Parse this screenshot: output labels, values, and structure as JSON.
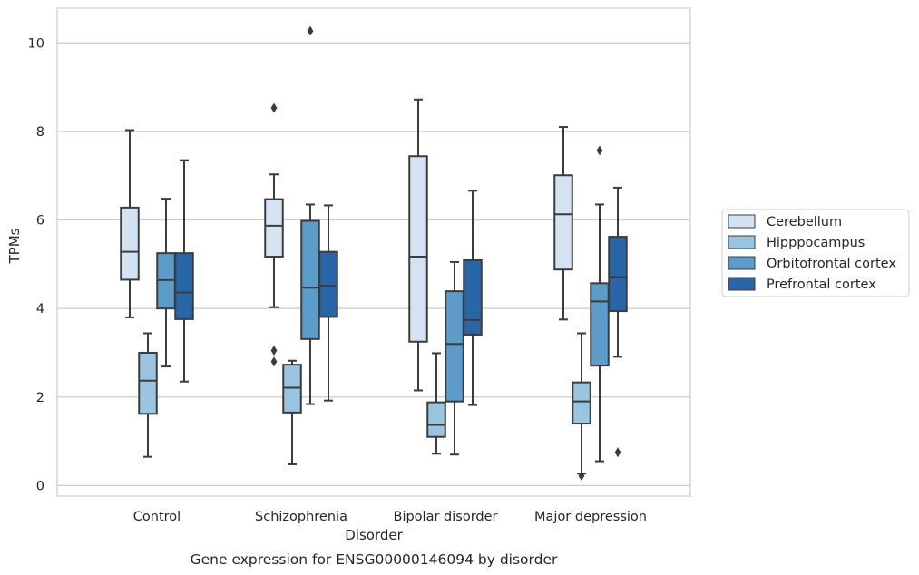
{
  "chart_data": {
    "type": "box",
    "title": "",
    "caption": "Gene expression for ENSG00000146094 by disorder",
    "xlabel": "Disorder",
    "ylabel": "TPMs",
    "ylim": [
      -0.25,
      10.8
    ],
    "yticks": [
      0,
      2,
      4,
      6,
      8,
      10
    ],
    "grid": "horizontal",
    "legend_position": "right",
    "categories": [
      "Control",
      "Schizophrenia",
      "Bipolar disorder",
      "Major depression"
    ],
    "series": [
      {
        "name": "Cerebellum",
        "color": "#d4e3f2",
        "boxes": [
          {
            "whislo": 3.8,
            "q1": 4.65,
            "med": 5.28,
            "q3": 6.28,
            "whishi": 8.03,
            "fliers": []
          },
          {
            "whislo": 4.03,
            "q1": 5.17,
            "med": 5.87,
            "q3": 6.47,
            "whishi": 7.03,
            "fliers": [
              8.53,
              3.05,
              2.8
            ]
          },
          {
            "whislo": 2.15,
            "q1": 3.25,
            "med": 5.17,
            "q3": 7.44,
            "whishi": 8.72,
            "fliers": []
          },
          {
            "whislo": 3.75,
            "q1": 4.88,
            "med": 6.13,
            "q3": 7.01,
            "whishi": 8.1,
            "fliers": []
          }
        ]
      },
      {
        "name": "Hipppocampus",
        "color": "#9ac4e0",
        "boxes": [
          {
            "whislo": 0.65,
            "q1": 1.62,
            "med": 2.37,
            "q3": 3.0,
            "whishi": 3.44,
            "fliers": []
          },
          {
            "whislo": 0.48,
            "q1": 1.65,
            "med": 2.21,
            "q3": 2.73,
            "whishi": 2.82,
            "fliers": []
          },
          {
            "whislo": 0.72,
            "q1": 1.1,
            "med": 1.37,
            "q3": 1.88,
            "whishi": 2.99,
            "fliers": []
          },
          {
            "whislo": 0.27,
            "q1": 1.4,
            "med": 1.9,
            "q3": 2.33,
            "whishi": 3.44,
            "fliers": [
              0.22
            ]
          }
        ]
      },
      {
        "name": "Orbitofrontal cortex",
        "color": "#5b9cc8",
        "boxes": [
          {
            "whislo": 2.69,
            "q1": 4.0,
            "med": 4.64,
            "q3": 5.25,
            "whishi": 6.48,
            "fliers": []
          },
          {
            "whislo": 1.84,
            "q1": 3.31,
            "med": 4.47,
            "q3": 5.98,
            "whishi": 6.35,
            "fliers": [
              10.27
            ]
          },
          {
            "whislo": 0.7,
            "q1": 1.9,
            "med": 3.2,
            "q3": 4.39,
            "whishi": 5.05,
            "fliers": []
          },
          {
            "whislo": 0.55,
            "q1": 2.71,
            "med": 4.16,
            "q3": 4.57,
            "whishi": 6.35,
            "fliers": [
              7.57
            ]
          }
        ]
      },
      {
        "name": "Prefrontal cortex",
        "color": "#2866a8",
        "boxes": [
          {
            "whislo": 2.35,
            "q1": 3.76,
            "med": 4.36,
            "q3": 5.25,
            "whishi": 7.35,
            "fliers": []
          },
          {
            "whislo": 1.92,
            "q1": 3.81,
            "med": 4.51,
            "q3": 5.28,
            "whishi": 6.33,
            "fliers": []
          },
          {
            "whislo": 1.82,
            "q1": 3.41,
            "med": 3.74,
            "q3": 5.09,
            "whishi": 6.66,
            "fliers": []
          },
          {
            "whislo": 2.91,
            "q1": 3.94,
            "med": 4.71,
            "q3": 5.62,
            "whishi": 6.73,
            "fliers": [
              0.75
            ]
          }
        ]
      }
    ]
  }
}
